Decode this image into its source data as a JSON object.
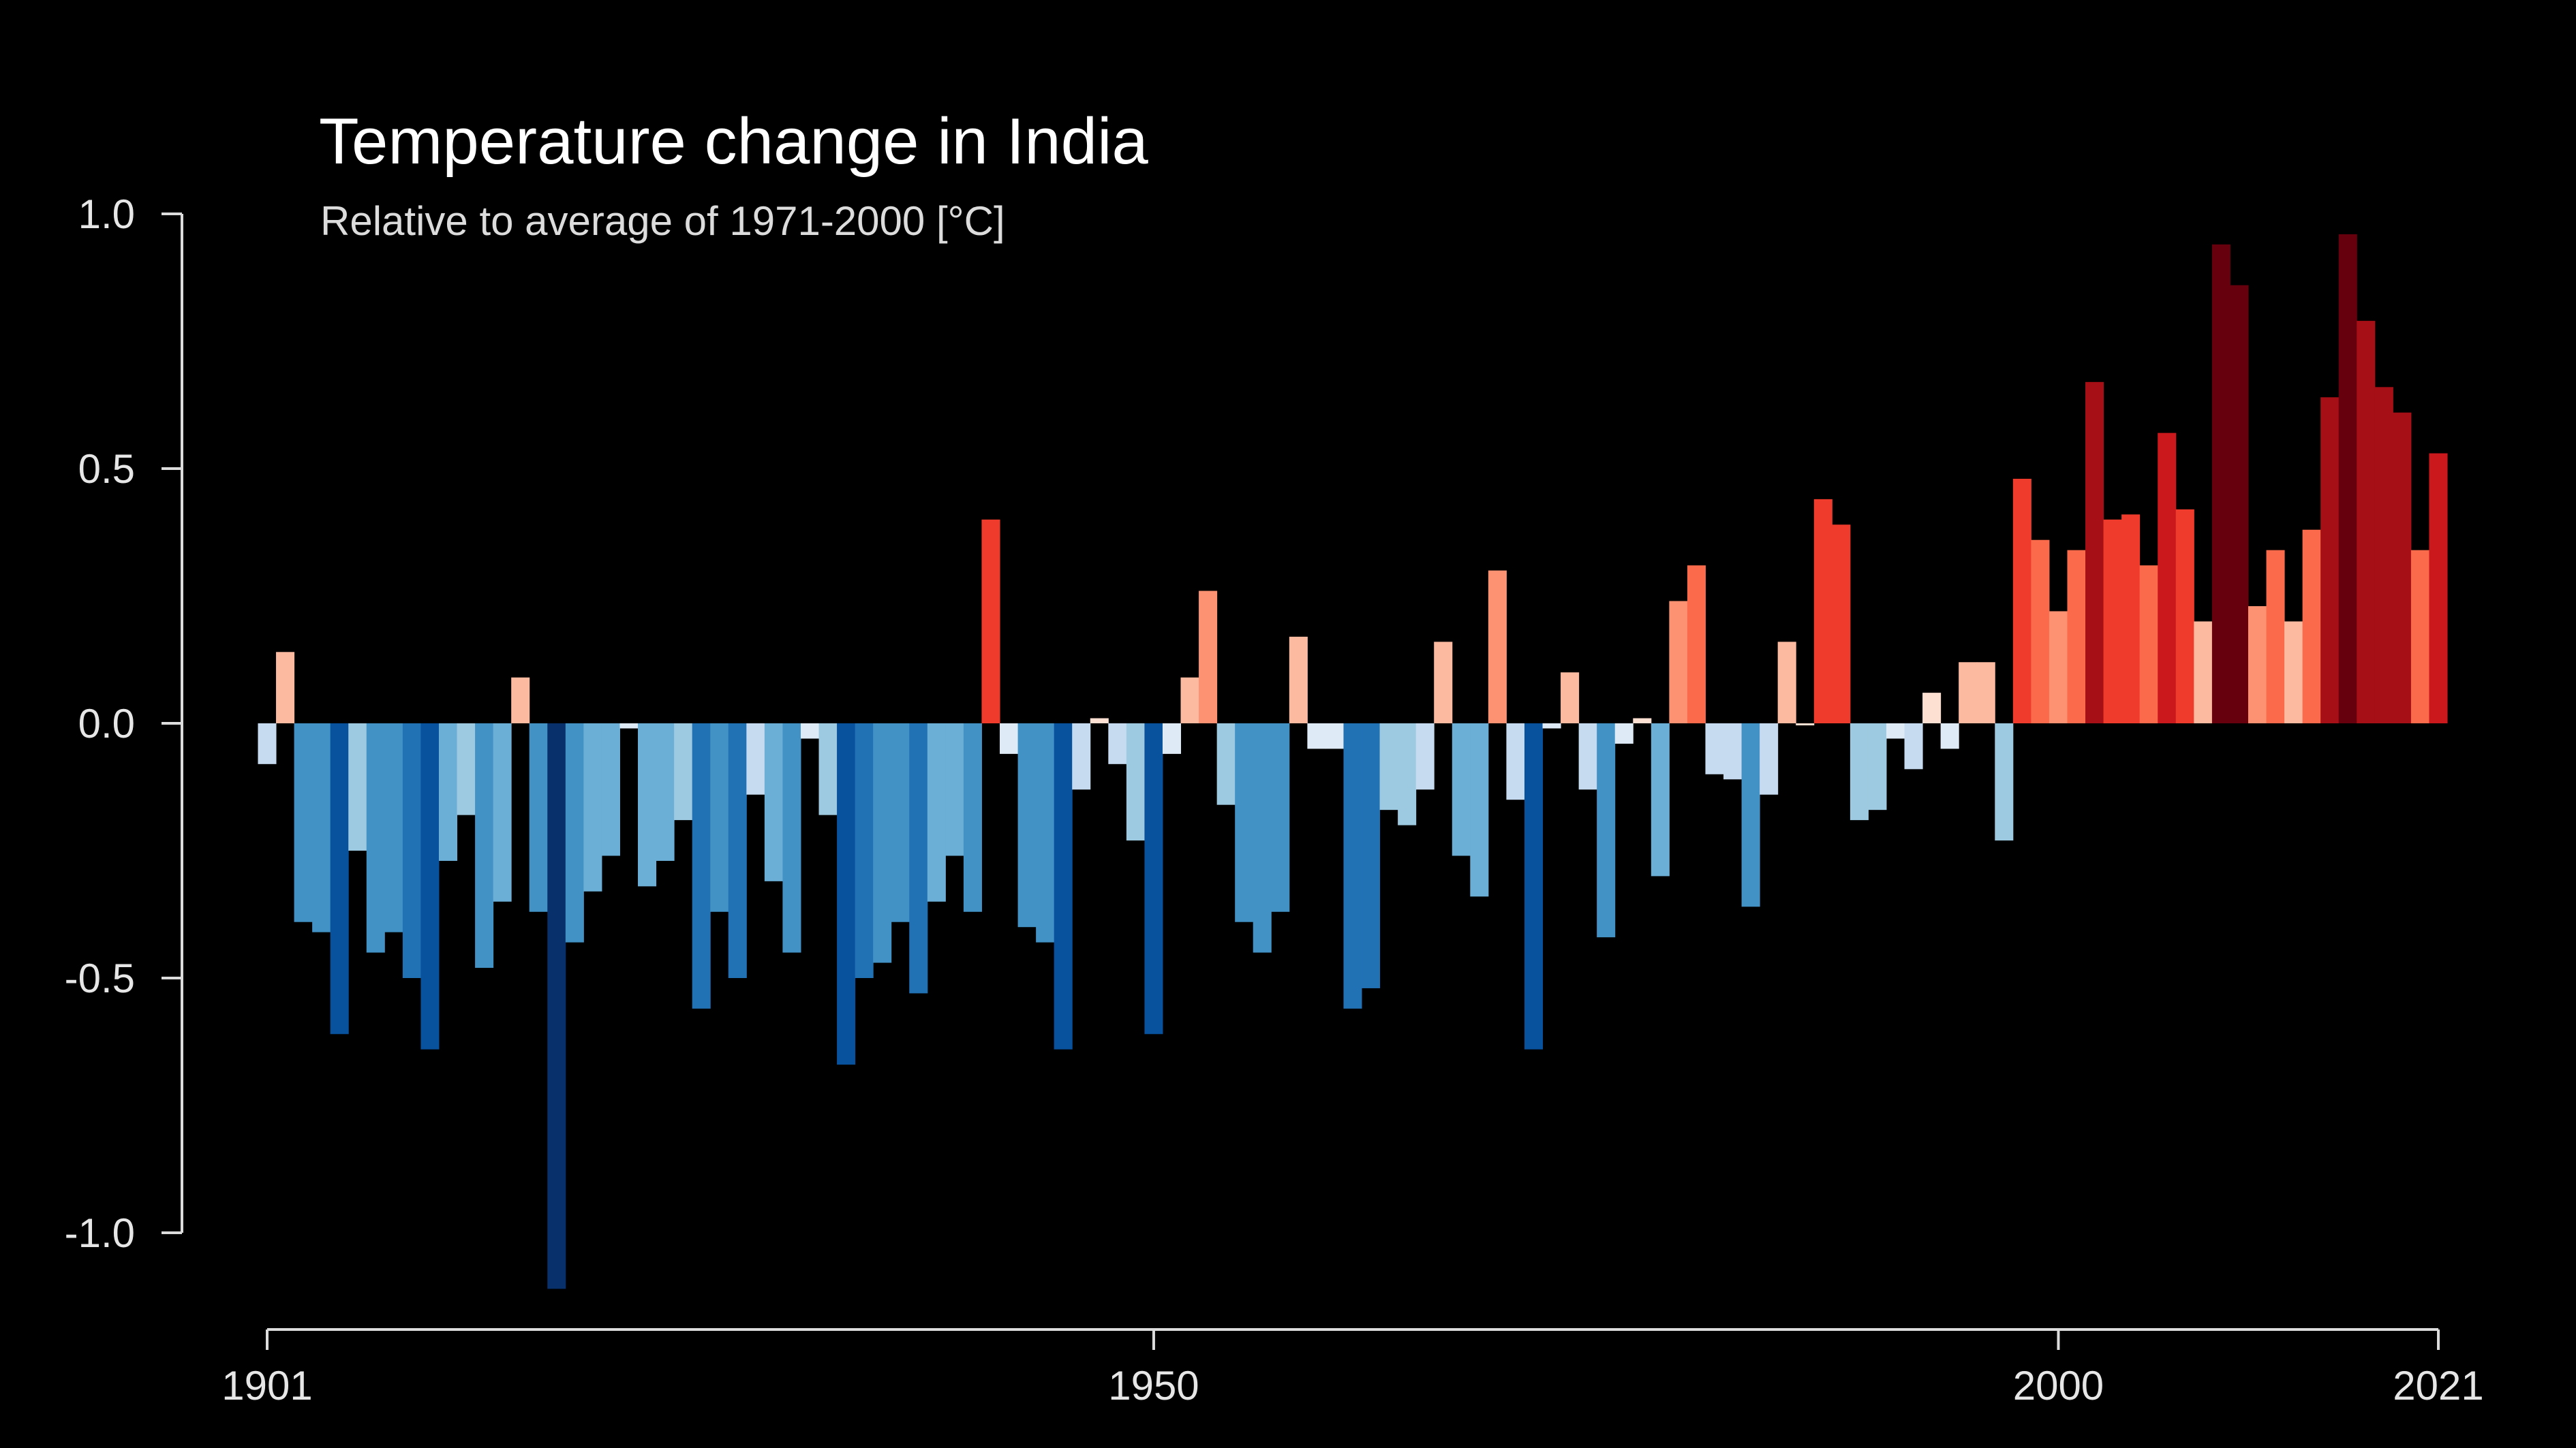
{
  "chart_data": {
    "type": "bar",
    "title": "Temperature change in India",
    "subtitle": "Relative to average of 1971-2000  [°C]",
    "xlabel": "",
    "ylabel": "",
    "ylim": [
      -1.0,
      1.0
    ],
    "xlim": [
      1901,
      2021
    ],
    "grid": false,
    "legend": "none",
    "x_ticks": [
      {
        "value": 1901,
        "label": "1901"
      },
      {
        "value": 1950,
        "label": "1950"
      },
      {
        "value": 2000,
        "label": "2000"
      },
      {
        "value": 2021,
        "label": "2021"
      }
    ],
    "y_ticks": [
      {
        "value": 1.0,
        "label": "1.0"
      },
      {
        "value": 0.5,
        "label": "0.5"
      },
      {
        "value": 0.0,
        "label": "0.0"
      },
      {
        "value": -0.5,
        "label": "-0.5"
      },
      {
        "value": -1.0,
        "label": "-1.0"
      }
    ],
    "color_scale": {
      "negative": [
        "#08306b",
        "#08519c",
        "#2171b5",
        "#4292c6",
        "#6baed6",
        "#9ecae1",
        "#c6dbef",
        "#deebf7"
      ],
      "positive": [
        "#fee0d2",
        "#fcbba1",
        "#fc9272",
        "#fb6a4a",
        "#ef3b2c",
        "#cb181d",
        "#a50f15",
        "#67000d"
      ]
    },
    "years": [
      1901,
      1902,
      1903,
      1904,
      1905,
      1906,
      1907,
      1908,
      1909,
      1910,
      1911,
      1912,
      1913,
      1914,
      1915,
      1916,
      1917,
      1918,
      1919,
      1920,
      1921,
      1922,
      1923,
      1924,
      1925,
      1926,
      1927,
      1928,
      1929,
      1930,
      1931,
      1932,
      1933,
      1934,
      1935,
      1936,
      1937,
      1938,
      1939,
      1940,
      1941,
      1942,
      1943,
      1944,
      1945,
      1946,
      1947,
      1948,
      1949,
      1950,
      1951,
      1952,
      1953,
      1954,
      1955,
      1956,
      1957,
      1958,
      1959,
      1960,
      1961,
      1962,
      1963,
      1964,
      1965,
      1966,
      1967,
      1968,
      1969,
      1970,
      1971,
      1972,
      1973,
      1974,
      1975,
      1976,
      1977,
      1978,
      1979,
      1980,
      1981,
      1982,
      1983,
      1984,
      1985,
      1986,
      1987,
      1988,
      1989,
      1990,
      1991,
      1992,
      1993,
      1994,
      1995,
      1996,
      1997,
      1998,
      1999,
      2000,
      2001,
      2002,
      2003,
      2004,
      2005,
      2006,
      2007,
      2008,
      2009,
      2010,
      2011,
      2012,
      2013,
      2014,
      2015,
      2016,
      2017,
      2018,
      2019,
      2020,
      2021
    ],
    "values": [
      -0.08,
      0.14,
      -0.39,
      -0.41,
      -0.61,
      -0.25,
      -0.45,
      -0.41,
      -0.5,
      -0.64,
      -0.27,
      -0.18,
      -0.48,
      -0.35,
      0.09,
      -0.37,
      -1.11,
      -0.43,
      -0.33,
      -0.26,
      -0.01,
      -0.32,
      -0.27,
      -0.19,
      -0.56,
      -0.37,
      -0.5,
      -0.14,
      -0.31,
      -0.45,
      -0.03,
      -0.18,
      -0.67,
      -0.5,
      -0.47,
      -0.39,
      -0.53,
      -0.35,
      -0.26,
      -0.37,
      0.4,
      -0.06,
      -0.4,
      -0.43,
      -0.64,
      -0.13,
      0.01,
      -0.08,
      -0.23,
      -0.61,
      -0.06,
      0.09,
      0.26,
      -0.16,
      -0.39,
      -0.45,
      -0.37,
      0.17,
      -0.05,
      -0.05,
      -0.56,
      -0.52,
      -0.17,
      -0.2,
      -0.13,
      0.16,
      -0.26,
      -0.34,
      0.3,
      -0.15,
      -0.64,
      -0.01,
      0.1,
      -0.13,
      -0.42,
      -0.04,
      0.01,
      -0.3,
      0.24,
      0.31,
      -0.1,
      -0.11,
      -0.36,
      -0.14,
      0.16,
      0.0,
      0.44,
      0.39,
      -0.19,
      -0.17,
      -0.03,
      -0.09,
      0.06,
      -0.05,
      0.12,
      0.12,
      -0.23,
      0.48,
      0.36,
      0.22,
      0.34,
      0.67,
      0.4,
      0.41,
      0.31,
      0.57,
      0.42,
      0.2,
      0.94,
      0.86,
      0.23,
      0.34,
      0.2,
      0.38,
      0.64,
      0.96,
      0.79,
      0.66,
      0.61,
      0.34,
      0.53
    ]
  }
}
